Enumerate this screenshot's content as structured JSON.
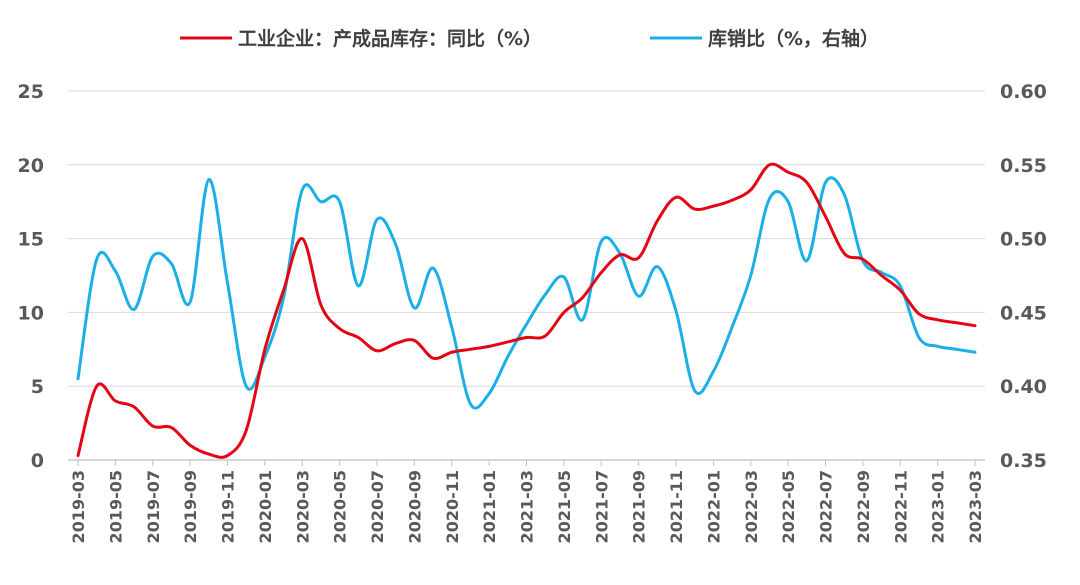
{
  "colors": {
    "series1": "#e30613",
    "series2": "#1aafe6",
    "grid": "#d9d9d9",
    "axis": "#bfbfbf",
    "tick_text": "#595959"
  },
  "chart_data": {
    "type": "line",
    "legend": "top-center",
    "grid": true,
    "x": [
      "2019-03",
      "2019-04",
      "2019-05",
      "2019-06",
      "2019-07",
      "2019-08",
      "2019-09",
      "2019-10",
      "2019-11",
      "2019-12",
      "2020-01",
      "2020-02",
      "2020-03",
      "2020-04",
      "2020-05",
      "2020-06",
      "2020-07",
      "2020-08",
      "2020-09",
      "2020-10",
      "2020-11",
      "2020-12",
      "2021-01",
      "2021-02",
      "2021-03",
      "2021-04",
      "2021-05",
      "2021-06",
      "2021-07",
      "2021-08",
      "2021-09",
      "2021-10",
      "2021-11",
      "2021-12",
      "2022-01",
      "2022-02",
      "2022-03",
      "2022-04",
      "2022-05",
      "2022-06",
      "2022-07",
      "2022-08",
      "2022-09",
      "2022-10",
      "2022-11",
      "2022-12",
      "2023-01",
      "2023-02",
      "2023-03"
    ],
    "x_tick_labels": [
      "2019-03",
      "2019-05",
      "2019-07",
      "2019-09",
      "2019-11",
      "2020-01",
      "2020-03",
      "2020-05",
      "2020-07",
      "2020-09",
      "2020-11",
      "2021-01",
      "2021-03",
      "2021-05",
      "2021-07",
      "2021-09",
      "2021-11",
      "2022-01",
      "2022-03",
      "2022-05",
      "2022-07",
      "2022-09",
      "2022-11",
      "2023-01",
      "2023-03"
    ],
    "y_left": {
      "min": 0,
      "max": 25,
      "ticks": [
        "0",
        "5",
        "10",
        "15",
        "20",
        "25"
      ]
    },
    "y_right": {
      "min": 0.35,
      "max": 0.6,
      "ticks": [
        "0.35",
        "0.40",
        "0.45",
        "0.50",
        "0.55",
        "0.60"
      ]
    },
    "series": [
      {
        "name": "工业企业：产成品库存：同比（%）",
        "axis": "left",
        "values": [
          0.3,
          5.0,
          4.0,
          3.6,
          2.3,
          2.2,
          1.0,
          0.4,
          0.3,
          2.0,
          7.5,
          11.5,
          15.0,
          10.5,
          8.9,
          8.3,
          7.4,
          7.9,
          8.1,
          6.9,
          7.3,
          7.5,
          7.7,
          8.0,
          8.3,
          8.4,
          10.0,
          11.0,
          12.7,
          13.9,
          13.7,
          16.2,
          17.8,
          17.0,
          17.2,
          17.6,
          18.3,
          20.0,
          19.5,
          18.8,
          16.5,
          14.0,
          13.6,
          12.5,
          11.5,
          9.9,
          9.5,
          9.3,
          9.1
        ]
      },
      {
        "name": "库销比（%，右轴）",
        "axis": "right",
        "values": [
          0.405,
          0.486,
          0.478,
          0.452,
          0.488,
          0.483,
          0.457,
          0.54,
          0.47,
          0.4,
          0.42,
          0.46,
          0.533,
          0.525,
          0.525,
          0.468,
          0.513,
          0.496,
          0.453,
          0.48,
          0.44,
          0.388,
          0.395,
          0.42,
          0.442,
          0.462,
          0.474,
          0.445,
          0.498,
          0.49,
          0.461,
          0.481,
          0.451,
          0.397,
          0.41,
          0.44,
          0.475,
          0.527,
          0.525,
          0.485,
          0.538,
          0.53,
          0.485,
          0.477,
          0.468,
          0.433,
          0.427,
          0.425,
          0.423
        ]
      }
    ]
  }
}
